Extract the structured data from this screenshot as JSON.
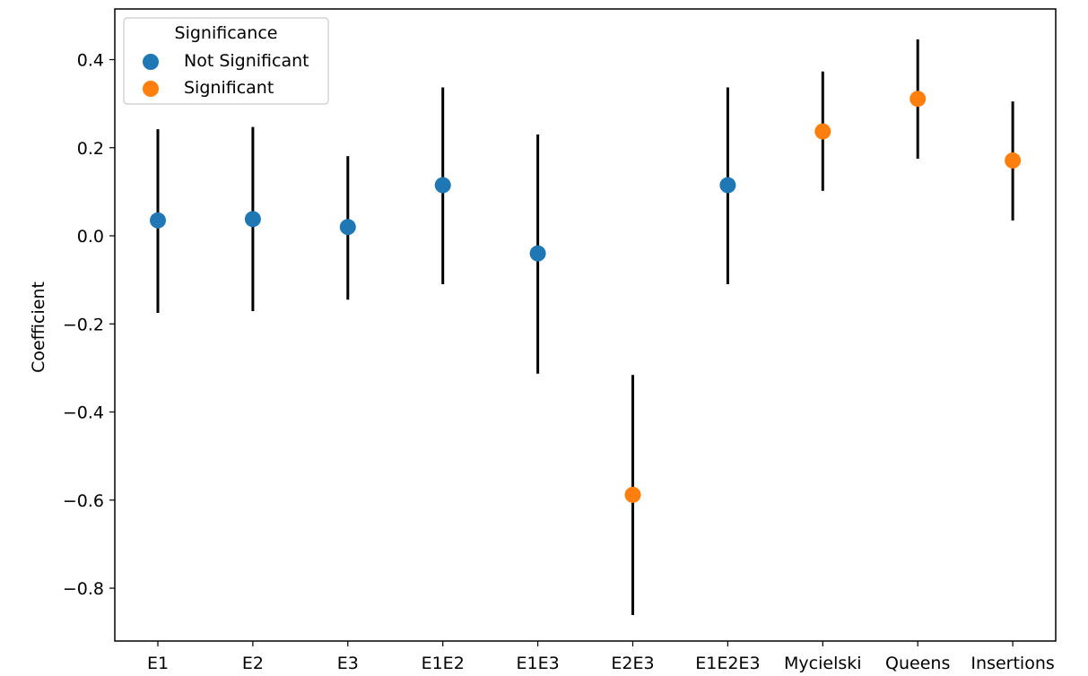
{
  "chart_data": {
    "type": "scatter",
    "ylabel": "Coefficient",
    "xlabel": "",
    "categories": [
      "E1",
      "E2",
      "E3",
      "E1E2",
      "E1E3",
      "E2E3",
      "E1E2E3",
      "Mycielski",
      "Queens",
      "Insertions"
    ],
    "points": [
      {
        "category": "E1",
        "value": 0.035,
        "ci_low": -0.175,
        "ci_high": 0.242,
        "significance": "Not Significant"
      },
      {
        "category": "E2",
        "value": 0.038,
        "ci_low": -0.171,
        "ci_high": 0.247,
        "significance": "Not Significant"
      },
      {
        "category": "E3",
        "value": 0.02,
        "ci_low": -0.145,
        "ci_high": 0.181,
        "significance": "Not Significant"
      },
      {
        "category": "E1E2",
        "value": 0.115,
        "ci_low": -0.11,
        "ci_high": 0.337,
        "significance": "Not Significant"
      },
      {
        "category": "E1E3",
        "value": -0.04,
        "ci_low": -0.313,
        "ci_high": 0.23,
        "significance": "Not Significant"
      },
      {
        "category": "E2E3",
        "value": -0.588,
        "ci_low": -0.861,
        "ci_high": -0.316,
        "significance": "Significant"
      },
      {
        "category": "E1E2E3",
        "value": 0.115,
        "ci_low": -0.11,
        "ci_high": 0.337,
        "significance": "Not Significant"
      },
      {
        "category": "Mycielski",
        "value": 0.237,
        "ci_low": 0.102,
        "ci_high": 0.373,
        "significance": "Significant"
      },
      {
        "category": "Queens",
        "value": 0.311,
        "ci_low": 0.175,
        "ci_high": 0.446,
        "significance": "Significant"
      },
      {
        "category": "Insertions",
        "value": 0.171,
        "ci_low": 0.035,
        "ci_high": 0.305,
        "significance": "Significant"
      }
    ],
    "yticks": [
      0.4,
      0.2,
      0.0,
      -0.2,
      -0.4,
      -0.6,
      -0.8
    ],
    "ytick_labels": [
      "0.4",
      "0.2",
      "0.0",
      "−0.2",
      "−0.4",
      "−0.6",
      "−0.8"
    ],
    "ylim": [
      -0.92,
      0.515
    ],
    "grid": false,
    "legend": {
      "title": "Significance",
      "placement": "top-left",
      "entries": [
        {
          "label": "Not Significant",
          "color": "#1f77b4"
        },
        {
          "label": "Significant",
          "color": "#ff7f0e"
        }
      ]
    },
    "colors": {
      "Not Significant": "#1f77b4",
      "Significant": "#ff7f0e",
      "errorbar": "#000000"
    }
  }
}
